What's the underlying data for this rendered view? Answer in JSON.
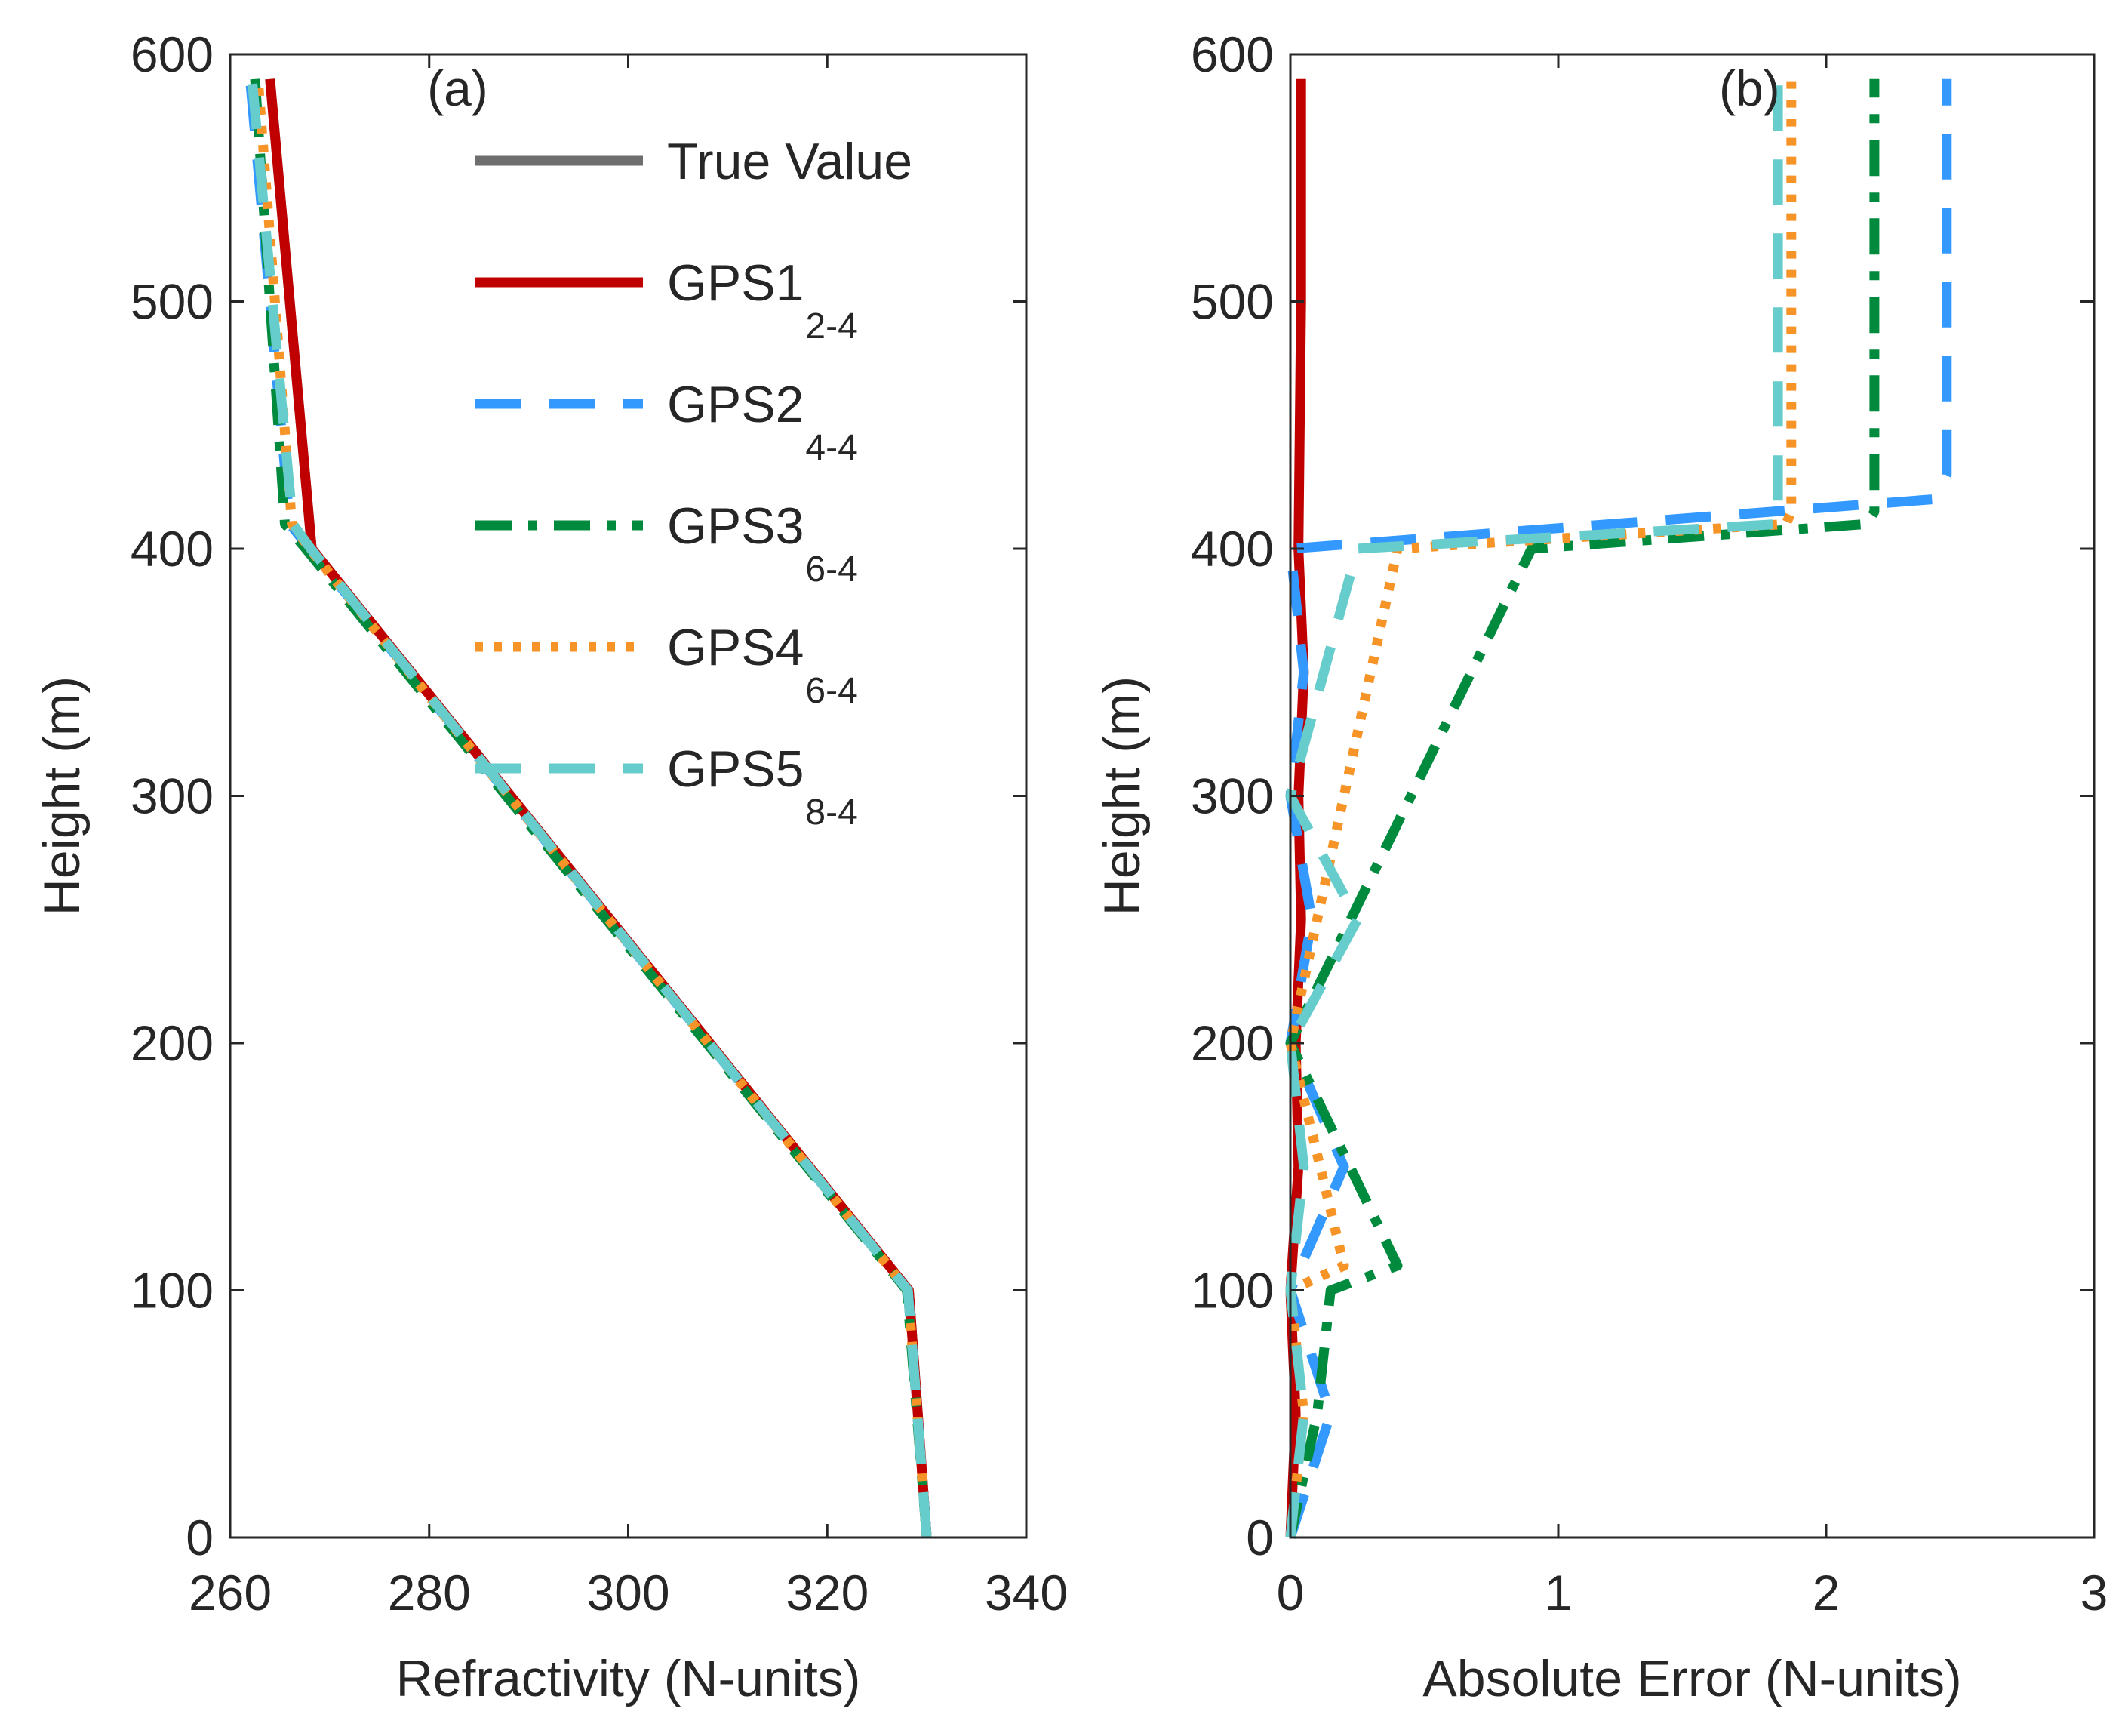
{
  "chart_data": [
    {
      "type": "line",
      "panel_label": "(a)",
      "xlabel": "Refractivity (N-units)",
      "ylabel": "Height (m)",
      "xlim": [
        260,
        340
      ],
      "ylim": [
        0,
        600
      ],
      "xticks": [
        "260",
        "280",
        "300",
        "320",
        "340"
      ],
      "yticks": [
        "0",
        "100",
        "200",
        "300",
        "400",
        "500",
        "600"
      ],
      "grid": false,
      "legend_position": "top-right",
      "series": [
        {
          "name": "True Value",
          "sub": "",
          "color": "#6e6e6e",
          "style": "solid",
          "x": [
            330.0,
            328.2,
            268.2,
            264.0
          ],
          "y": [
            0,
            100,
            400,
            590
          ]
        },
        {
          "name": "GPS1",
          "sub": "2-4",
          "color": "#c00000",
          "style": "solid",
          "x": [
            330.0,
            328.2,
            268.2,
            264.0
          ],
          "y": [
            0,
            100,
            400,
            590
          ]
        },
        {
          "name": "GPS2",
          "sub": "4-4",
          "color": "#3399ff",
          "style": "dashed",
          "x": [
            330.0,
            328.1,
            268.0,
            266.0,
            262.0
          ],
          "y": [
            0,
            100,
            400,
            410,
            590
          ]
        },
        {
          "name": "GPS3",
          "sub": "6-4",
          "color": "#008a3e",
          "style": "dashdot",
          "x": [
            330.0,
            328.0,
            267.6,
            265.5,
            262.5
          ],
          "y": [
            0,
            100,
            400,
            410,
            590
          ]
        },
        {
          "name": "GPS4",
          "sub": "6-4",
          "color": "#f79428",
          "style": "dotted",
          "x": [
            330.0,
            328.1,
            268.0,
            266.2,
            262.8
          ],
          "y": [
            0,
            100,
            400,
            410,
            590
          ]
        },
        {
          "name": "GPS5",
          "sub": "8-4",
          "color": "#66cccc",
          "style": "dashed",
          "x": [
            330.0,
            328.1,
            268.1,
            266.3,
            262.2
          ],
          "y": [
            0,
            100,
            400,
            410,
            590
          ]
        }
      ]
    },
    {
      "type": "line",
      "panel_label": "(b)",
      "xlabel": "Absolute Error (N-units)",
      "ylabel": "Height (m)",
      "xlim": [
        0,
        3
      ],
      "ylim": [
        0,
        600
      ],
      "xticks": [
        "0",
        "1",
        "2",
        "3"
      ],
      "yticks": [
        "0",
        "100",
        "200",
        "300",
        "400",
        "500",
        "600"
      ],
      "grid": false,
      "series": [
        {
          "name": "GPS1",
          "color": "#c00000",
          "style": "solid",
          "x": [
            0.0,
            0.02,
            0.0,
            0.03,
            0.02,
            0.04,
            0.03,
            0.05,
            0.03,
            0.04,
            0.04
          ],
          "y": [
            0,
            50,
            100,
            150,
            200,
            250,
            300,
            350,
            400,
            500,
            590
          ]
        },
        {
          "name": "GPS2",
          "color": "#3399ff",
          "style": "dashed",
          "x": [
            0.0,
            0.15,
            0.0,
            0.2,
            0.0,
            0.08,
            0.0,
            0.05,
            0.0,
            2.4,
            2.45,
            2.45
          ],
          "y": [
            0,
            50,
            100,
            150,
            200,
            250,
            300,
            350,
            400,
            420,
            430,
            590
          ]
        },
        {
          "name": "GPS3",
          "color": "#008a3e",
          "style": "dashdot",
          "x": [
            0.0,
            0.1,
            0.15,
            0.4,
            0.0,
            0.9,
            2.15,
            2.18,
            2.18
          ],
          "y": [
            0,
            50,
            100,
            110,
            200,
            400,
            410,
            415,
            590
          ]
        },
        {
          "name": "GPS4",
          "color": "#f79428",
          "style": "dotted",
          "x": [
            0.0,
            0.05,
            0.0,
            0.2,
            0.0,
            0.4,
            1.85,
            1.87,
            1.87
          ],
          "y": [
            0,
            50,
            100,
            110,
            200,
            400,
            410,
            415,
            590
          ]
        },
        {
          "name": "GPS5",
          "color": "#66cccc",
          "style": "dashed",
          "x": [
            0.0,
            0.05,
            0.0,
            0.05,
            0.0,
            0.25,
            0.0,
            0.25,
            1.82,
            1.82,
            1.82
          ],
          "y": [
            0,
            50,
            100,
            150,
            200,
            250,
            300,
            400,
            410,
            415,
            590
          ]
        }
      ]
    }
  ]
}
